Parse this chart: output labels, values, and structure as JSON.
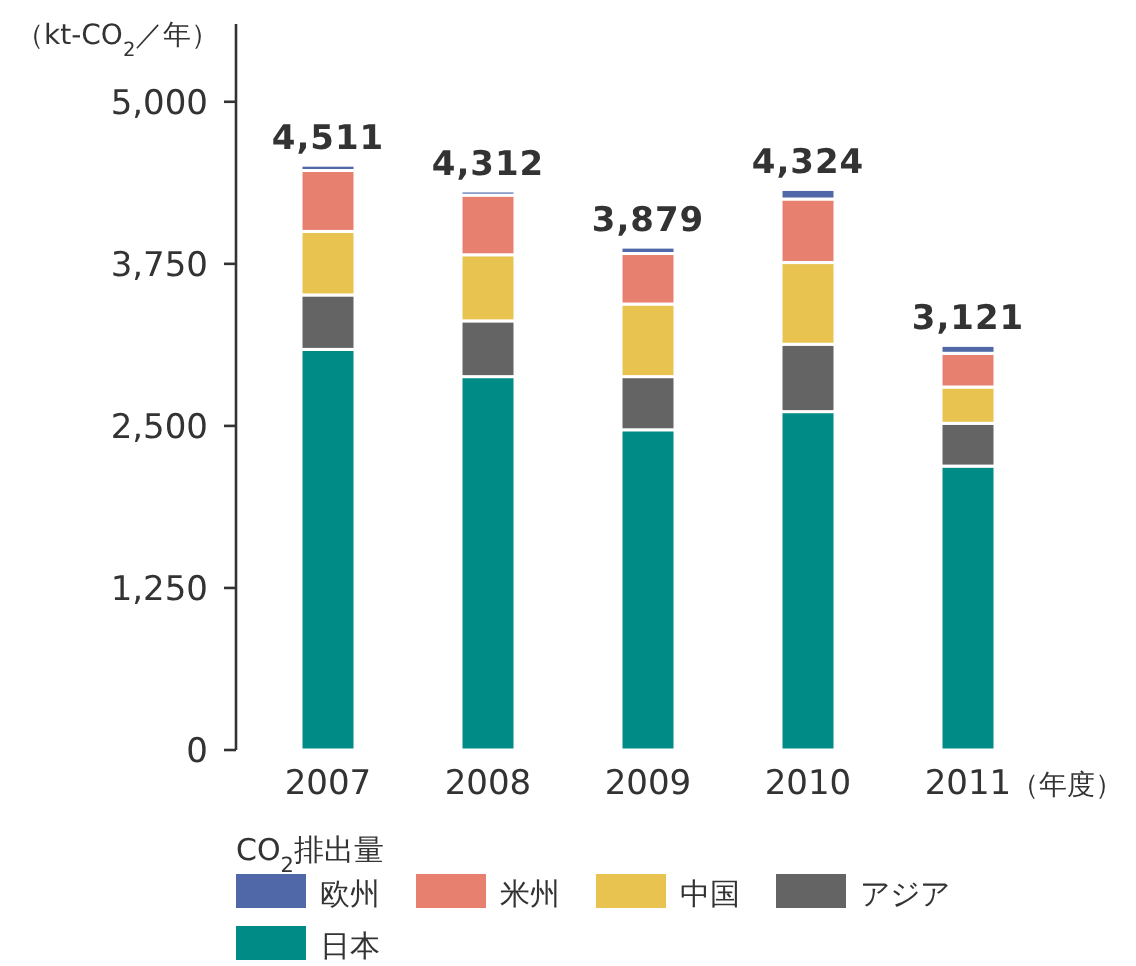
{
  "chart_data": {
    "type": "bar",
    "stacked": true,
    "ylabel": "（kt-CO$_{2}$／年）",
    "xlabel": "（年度）",
    "legend_title": "CO$_{2}$排出量",
    "legend": "bottom",
    "categories": [
      "2007",
      "2008",
      "2009",
      "2010",
      "2011"
    ],
    "ylim": [
      0,
      5600
    ],
    "yticks": [
      0,
      {
        "value": 1250,
        "label": "1,250"
      },
      {
        "value": 2500,
        "label": "2,500"
      },
      {
        "value": 3750,
        "label": "3,750"
      },
      {
        "value": 5000,
        "label": "5,000"
      }
    ],
    "series": [
      {
        "name": "日本",
        "color": "#008b87",
        "values": [
          3090,
          2880,
          2470,
          2610,
          2190
        ]
      },
      {
        "name": "アジア",
        "color": "#646464",
        "values": [
          420,
          430,
          410,
          520,
          330
        ]
      },
      {
        "name": "中国",
        "color": "#e8c350",
        "values": [
          490,
          510,
          560,
          630,
          280
        ]
      },
      {
        "name": "米州",
        "color": "#e88070",
        "values": [
          470,
          460,
          390,
          490,
          260
        ]
      },
      {
        "name": "欧州",
        "color": "#5068a8",
        "values": [
          41,
          32,
          49,
          74,
          61
        ]
      }
    ],
    "totals": [
      "4,511",
      "4,312",
      "3,879",
      "4,324",
      "3,121"
    ]
  }
}
